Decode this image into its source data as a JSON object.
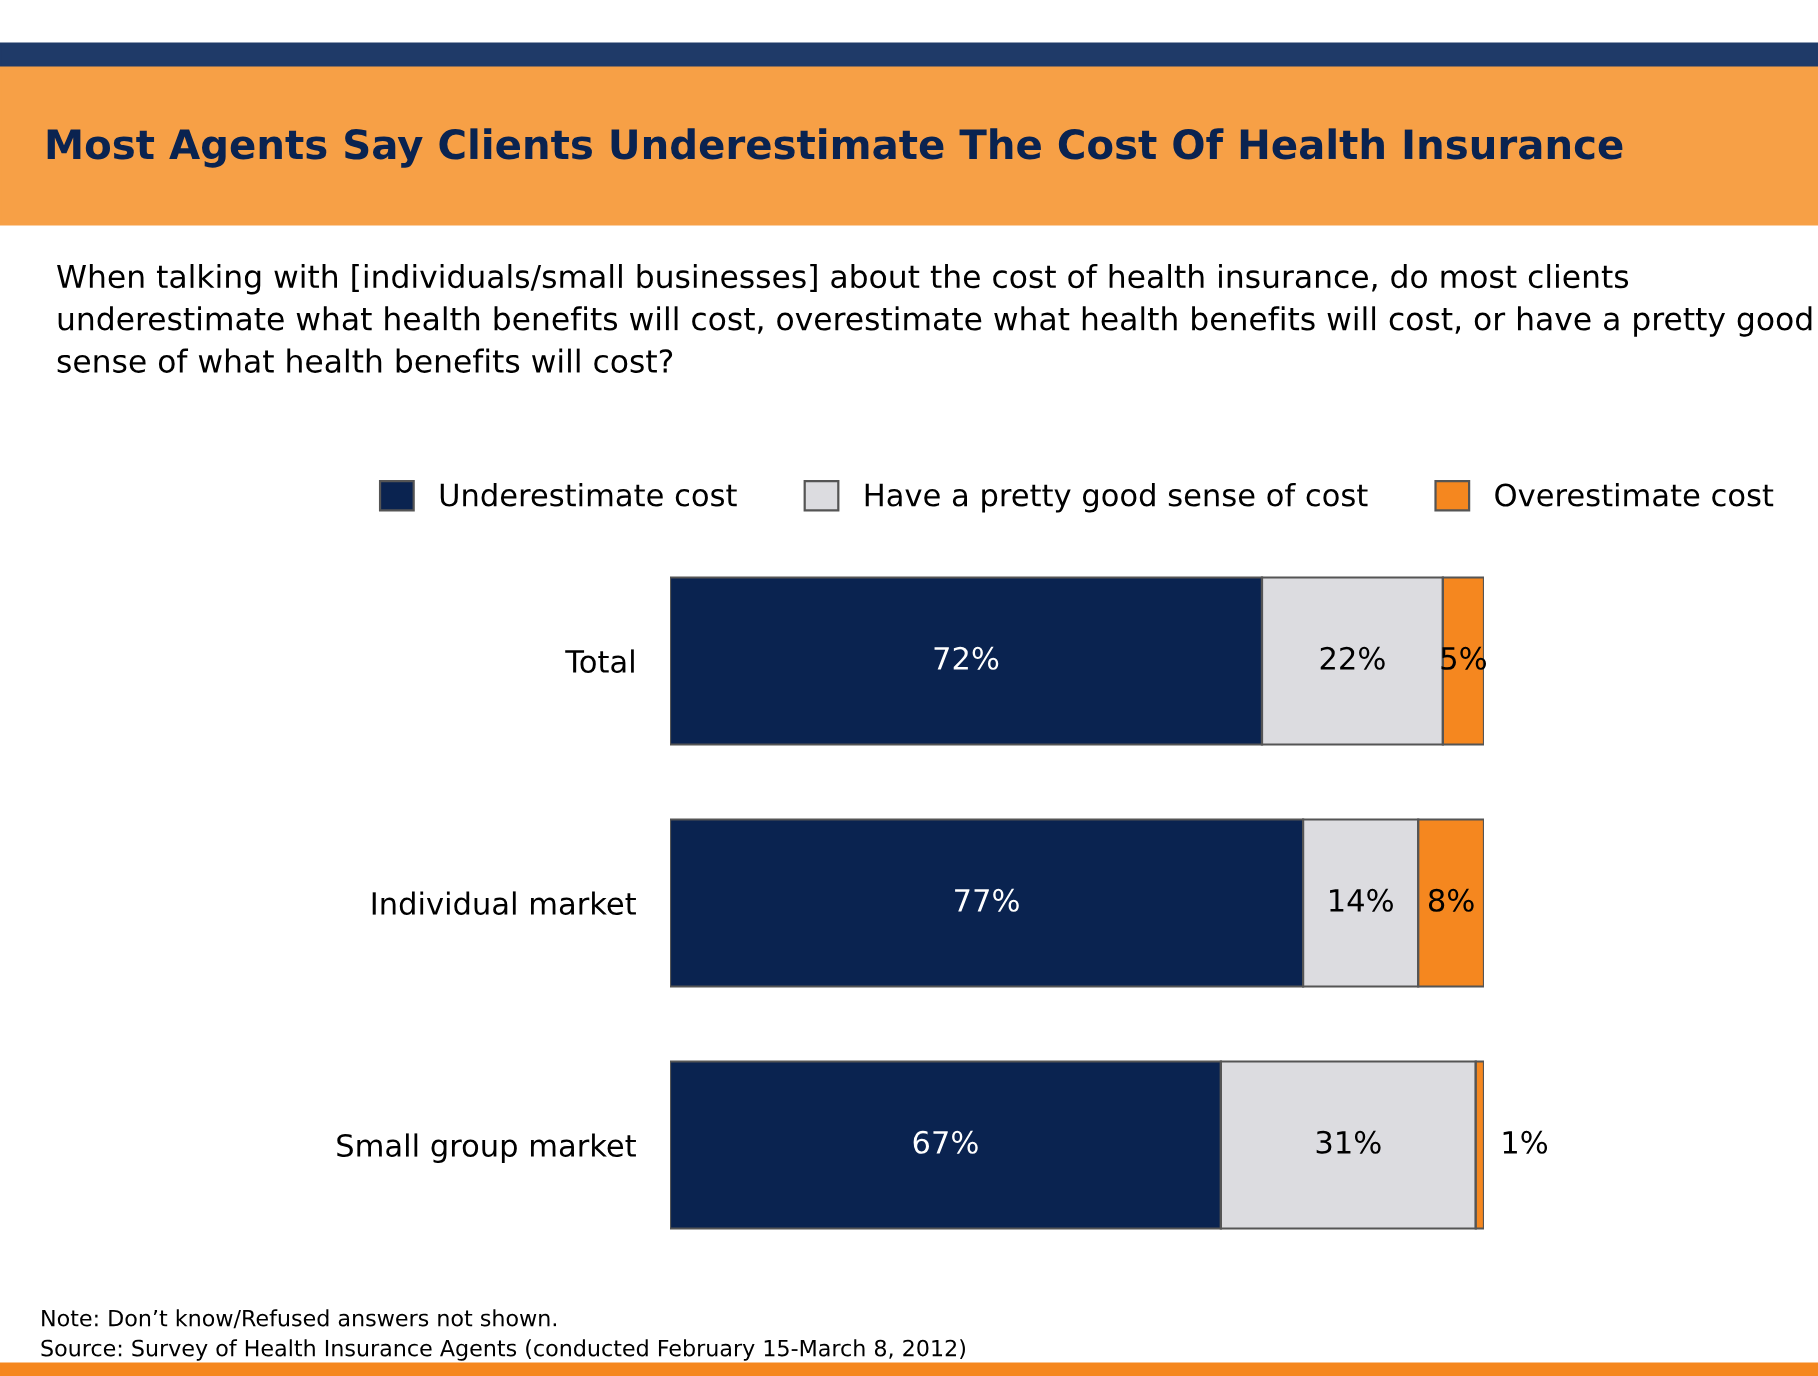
{
  "chart_data": {
    "type": "bar",
    "orientation": "horizontal",
    "stacked": true,
    "title": "Most Agents Say Clients Underestimate The Cost Of Health Insurance",
    "subtitle": "When talking with [individuals/small businesses] about the cost of health insurance, do most clients underestimate what health benefits will cost, overestimate what health benefits will cost, or have a pretty good sense of what health benefits will cost?",
    "categories": [
      "Total",
      "Individual market",
      "Small group market"
    ],
    "series": [
      {
        "name": "Underestimate cost",
        "color": "#0a2350",
        "values": [
          72,
          77,
          67
        ],
        "value_labels": [
          "72%",
          "77%",
          "67%"
        ]
      },
      {
        "name": "Have a pretty good sense of cost",
        "color": "#dcdce0",
        "values": [
          22,
          14,
          31
        ],
        "value_labels": [
          "22%",
          "14%",
          "31%"
        ]
      },
      {
        "name": "Overestimate cost",
        "color": "#f5871f",
        "values": [
          5,
          8,
          1
        ],
        "value_labels": [
          "5%",
          "8%",
          "1%"
        ]
      }
    ],
    "legend": "top",
    "tick_labels": "y",
    "annotations": [
      "Note: Don’t know/Refused answers not shown.",
      "Source: Survey of Health Insurance Agents (conducted February 15-March 8, 2012)"
    ]
  }
}
